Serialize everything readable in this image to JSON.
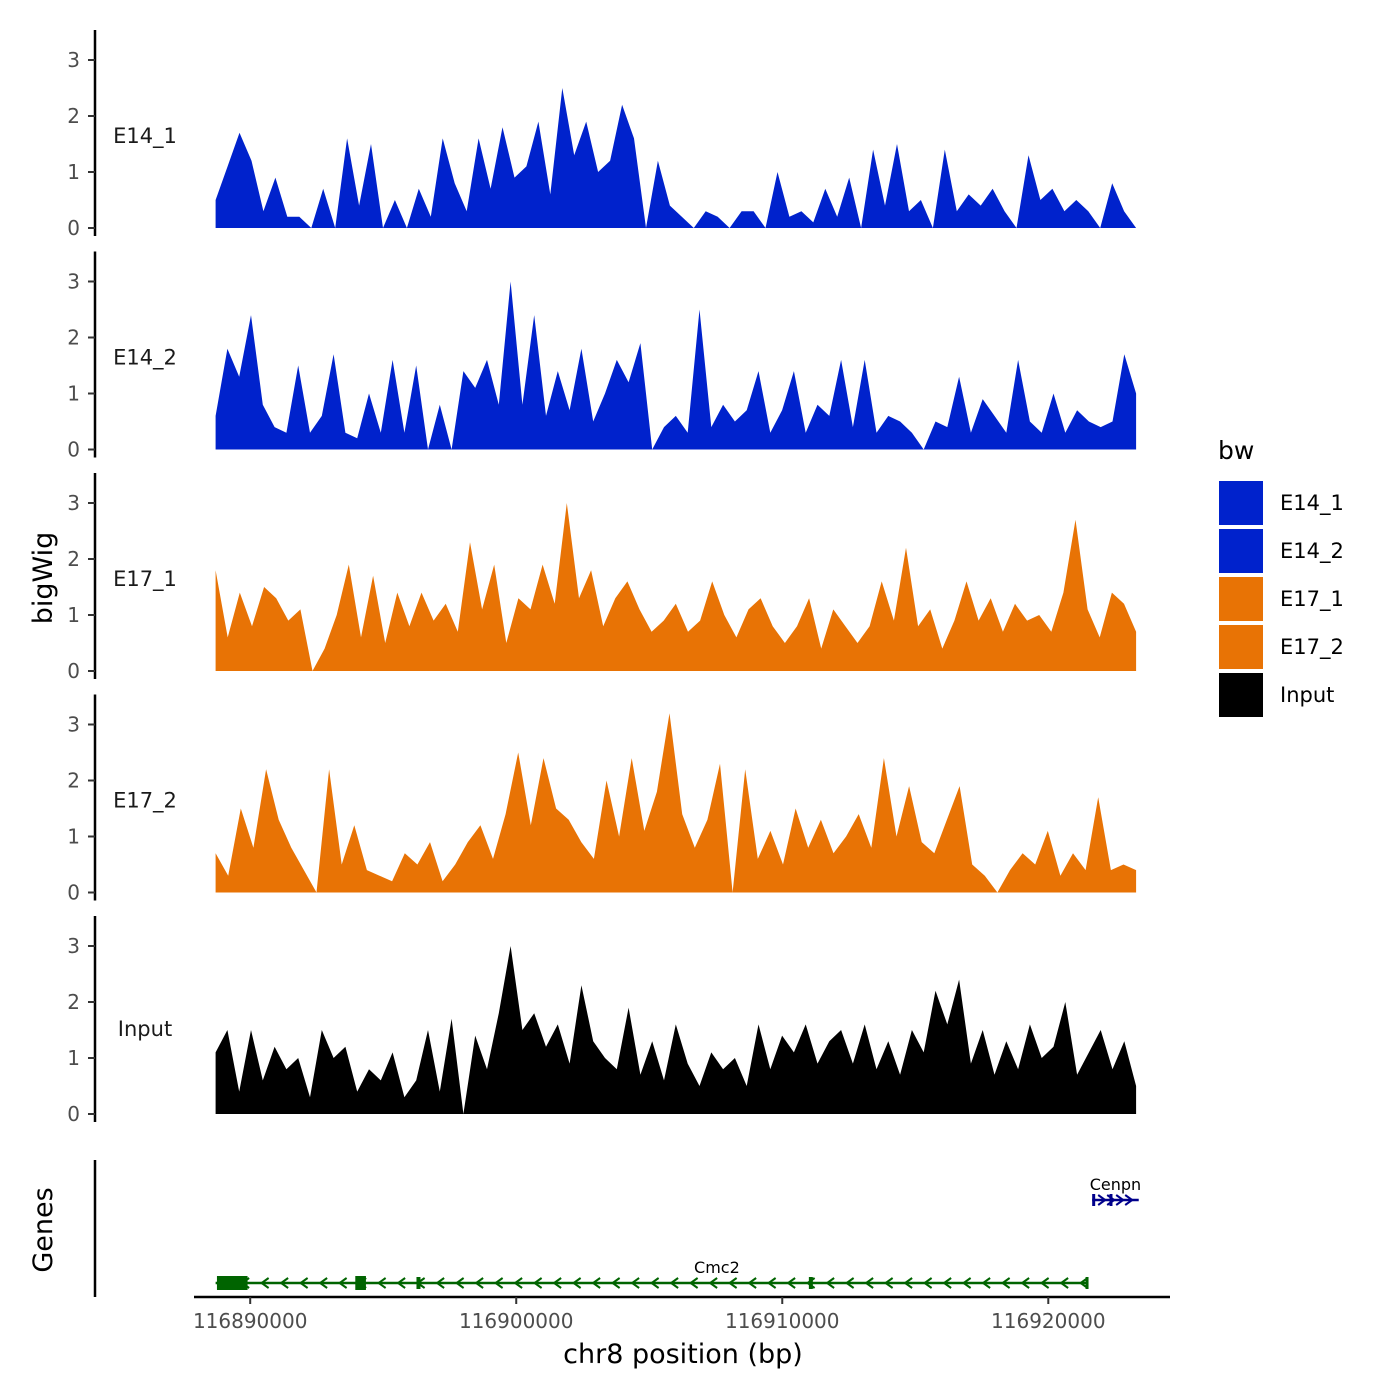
{
  "chart_data": {
    "type": "area",
    "title": "",
    "ylabel": "bigWig",
    "xlabel": "chr8 position (bp)",
    "genes_label": "Genes",
    "xlim": [
      116888000,
      116924500
    ],
    "data_x_range": [
      116888700,
      116923300
    ],
    "ylim": [
      0,
      3.5
    ],
    "yticks": [
      0,
      1,
      2,
      3
    ],
    "xticks": [
      116890000,
      116900000,
      116910000,
      116920000
    ],
    "xtick_labels": [
      "116890000",
      "116900000",
      "116910000",
      "116920000"
    ],
    "legend": {
      "title": "bw",
      "entries": [
        {
          "label": "E14_1",
          "color": "#0022CC"
        },
        {
          "label": "E14_2",
          "color": "#0022CC"
        },
        {
          "label": "E17_1",
          "color": "#E87305"
        },
        {
          "label": "E17_2",
          "color": "#E87305"
        },
        {
          "label": "Input",
          "color": "#000000"
        }
      ]
    },
    "series": [
      {
        "name": "E14_1",
        "color": "#0022CC",
        "values": [
          0.5,
          1.1,
          1.7,
          1.2,
          0.3,
          0.9,
          0.2,
          0.2,
          0.0,
          0.7,
          0.0,
          1.6,
          0.4,
          1.5,
          0.0,
          0.5,
          0.0,
          0.7,
          0.2,
          1.6,
          0.8,
          0.3,
          1.6,
          0.7,
          1.8,
          0.9,
          1.1,
          1.9,
          0.6,
          2.5,
          1.3,
          1.9,
          1.0,
          1.2,
          2.2,
          1.6,
          0.0,
          1.2,
          0.4,
          0.2,
          0.0,
          0.3,
          0.2,
          0.0,
          0.3,
          0.3,
          0.0,
          1.0,
          0.2,
          0.3,
          0.1,
          0.7,
          0.2,
          0.9,
          0.0,
          1.4,
          0.4,
          1.5,
          0.3,
          0.5,
          0.0,
          1.4,
          0.3,
          0.6,
          0.4,
          0.7,
          0.3,
          0.0,
          1.3,
          0.5,
          0.7,
          0.3,
          0.5,
          0.3,
          0.0,
          0.8,
          0.3,
          0.0
        ]
      },
      {
        "name": "E14_2",
        "color": "#0022CC",
        "values": [
          0.6,
          1.8,
          1.3,
          2.4,
          0.8,
          0.4,
          0.3,
          1.5,
          0.3,
          0.6,
          1.7,
          0.3,
          0.2,
          1.0,
          0.3,
          1.6,
          0.3,
          1.5,
          0.0,
          0.8,
          0.0,
          1.4,
          1.1,
          1.6,
          0.8,
          3.0,
          0.8,
          2.4,
          0.6,
          1.4,
          0.7,
          1.8,
          0.5,
          1.0,
          1.6,
          1.2,
          1.9,
          0.0,
          0.4,
          0.6,
          0.3,
          2.5,
          0.4,
          0.8,
          0.5,
          0.7,
          1.4,
          0.3,
          0.7,
          1.4,
          0.3,
          0.8,
          0.6,
          1.6,
          0.4,
          1.6,
          0.3,
          0.6,
          0.5,
          0.3,
          0.0,
          0.5,
          0.4,
          1.3,
          0.3,
          0.9,
          0.6,
          0.3,
          1.6,
          0.5,
          0.3,
          1.0,
          0.3,
          0.7,
          0.5,
          0.4,
          0.5,
          1.7,
          1.0
        ]
      },
      {
        "name": "E17_1",
        "color": "#E87305",
        "values": [
          1.8,
          0.6,
          1.4,
          0.8,
          1.5,
          1.3,
          0.9,
          1.1,
          0.0,
          0.4,
          1.0,
          1.9,
          0.6,
          1.7,
          0.5,
          1.4,
          0.8,
          1.4,
          0.9,
          1.2,
          0.7,
          2.3,
          1.1,
          1.9,
          0.5,
          1.3,
          1.1,
          1.9,
          1.2,
          3.0,
          1.3,
          1.8,
          0.8,
          1.3,
          1.6,
          1.1,
          0.7,
          0.9,
          1.2,
          0.7,
          0.9,
          1.6,
          1.0,
          0.6,
          1.1,
          1.3,
          0.8,
          0.5,
          0.8,
          1.3,
          0.4,
          1.1,
          0.8,
          0.5,
          0.8,
          1.6,
          0.9,
          2.2,
          0.8,
          1.1,
          0.4,
          0.9,
          1.6,
          0.9,
          1.3,
          0.7,
          1.2,
          0.9,
          1.0,
          0.7,
          1.4,
          2.7,
          1.1,
          0.6,
          1.4,
          1.2,
          0.7
        ]
      },
      {
        "name": "E17_2",
        "color": "#E87305",
        "values": [
          0.7,
          0.3,
          1.5,
          0.8,
          2.2,
          1.3,
          0.8,
          0.4,
          0.0,
          2.2,
          0.5,
          1.2,
          0.4,
          0.3,
          0.2,
          0.7,
          0.5,
          0.9,
          0.2,
          0.5,
          0.9,
          1.2,
          0.6,
          1.4,
          2.5,
          1.2,
          2.4,
          1.5,
          1.3,
          0.9,
          0.6,
          2.0,
          1.0,
          2.4,
          1.1,
          1.8,
          3.2,
          1.4,
          0.8,
          1.3,
          2.3,
          0.0,
          2.2,
          0.6,
          1.1,
          0.5,
          1.5,
          0.8,
          1.3,
          0.7,
          1.0,
          1.4,
          0.8,
          2.4,
          1.0,
          1.9,
          0.9,
          0.7,
          1.3,
          1.9,
          0.5,
          0.3,
          0.0,
          0.4,
          0.7,
          0.5,
          1.1,
          0.3,
          0.7,
          0.4,
          1.7,
          0.4,
          0.5,
          0.4
        ]
      },
      {
        "name": "Input",
        "color": "#000000",
        "values": [
          1.1,
          1.5,
          0.4,
          1.5,
          0.6,
          1.2,
          0.8,
          1.0,
          0.3,
          1.5,
          1.0,
          1.2,
          0.4,
          0.8,
          0.6,
          1.1,
          0.3,
          0.6,
          1.5,
          0.4,
          1.7,
          0.0,
          1.4,
          0.8,
          1.8,
          3.0,
          1.5,
          1.8,
          1.2,
          1.6,
          0.9,
          2.3,
          1.3,
          1.0,
          0.8,
          1.9,
          0.7,
          1.3,
          0.6,
          1.6,
          0.9,
          0.5,
          1.1,
          0.8,
          1.0,
          0.5,
          1.6,
          0.8,
          1.4,
          1.1,
          1.6,
          0.9,
          1.3,
          1.5,
          0.9,
          1.6,
          0.8,
          1.3,
          0.7,
          1.5,
          1.1,
          2.2,
          1.6,
          2.4,
          0.9,
          1.5,
          0.7,
          1.3,
          0.8,
          1.6,
          1.0,
          1.2,
          2.0,
          0.7,
          1.1,
          1.5,
          0.8,
          1.3,
          0.5
        ]
      }
    ],
    "genes": [
      {
        "name": "Cmc2",
        "start": 116888700,
        "end": 116921500,
        "strand": "-",
        "color": "#006400",
        "row": 2,
        "exons": [
          [
            116888750,
            116889900
          ],
          [
            116893950,
            116894350
          ],
          [
            116896250,
            116896400
          ],
          [
            116911000,
            116911150
          ],
          [
            116921400,
            116921500
          ]
        ]
      },
      {
        "name": "Cenpn",
        "start": 116921650,
        "end": 116923400,
        "strand": "+",
        "color": "#00008B",
        "row": 1,
        "exons": [
          [
            116921650,
            116921720
          ],
          [
            116922300,
            116922380
          ]
        ]
      }
    ]
  }
}
